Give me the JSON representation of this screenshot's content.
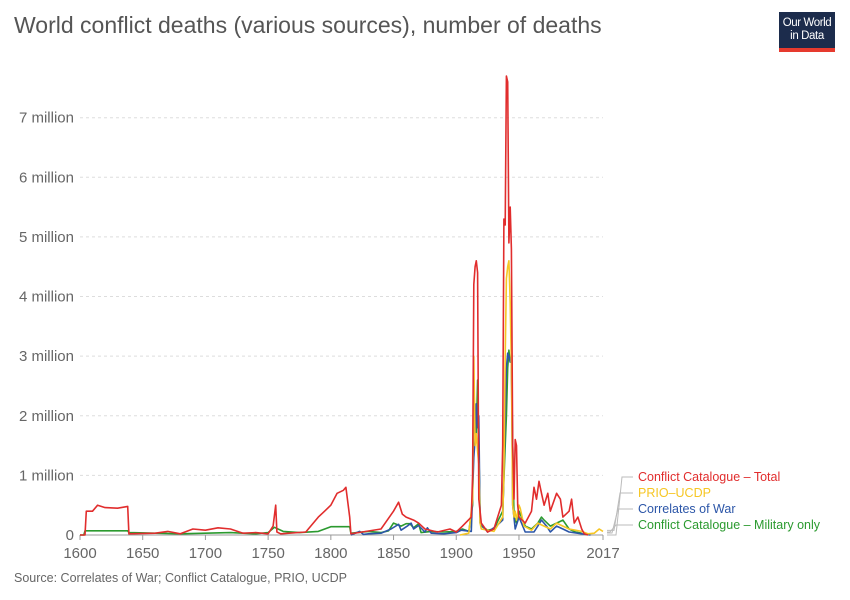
{
  "title": "World conflict deaths (various sources), number of deaths",
  "logo": {
    "line1": "Our World",
    "line2": "in Data"
  },
  "source": "Source: Correlates of War; Conflict Catalogue, PRIO, UCDP",
  "colors": {
    "conflict_catalogue_total": "#e12d2d",
    "prio_ucdp": "#f6c624",
    "correlates_of_war": "#2c56a8",
    "conflict_catalogue_military": "#2b9a2f",
    "grid": "#dddddd",
    "axis": "#999999"
  },
  "chart_data": {
    "type": "line",
    "title": "World conflict deaths (various sources), number of deaths",
    "xlabel": "",
    "ylabel": "",
    "xlim": [
      1600,
      2017
    ],
    "ylim": [
      0,
      7800000
    ],
    "grid": "horizontal dashed",
    "legend_position": "right",
    "x_ticks": [
      {
        "value": 1600,
        "label": "1600"
      },
      {
        "value": 1650,
        "label": "1650"
      },
      {
        "value": 1700,
        "label": "1700"
      },
      {
        "value": 1750,
        "label": "1750"
      },
      {
        "value": 1800,
        "label": "1800"
      },
      {
        "value": 1850,
        "label": "1850"
      },
      {
        "value": 1900,
        "label": "1900"
      },
      {
        "value": 1950,
        "label": "1950"
      },
      {
        "value": 2017,
        "label": "2017"
      }
    ],
    "y_ticks": [
      {
        "value": 0,
        "label": "0"
      },
      {
        "value": 1000000,
        "label": "1 million"
      },
      {
        "value": 2000000,
        "label": "2 million"
      },
      {
        "value": 3000000,
        "label": "3 million"
      },
      {
        "value": 4000000,
        "label": "4 million"
      },
      {
        "value": 5000000,
        "label": "5 million"
      },
      {
        "value": 6000000,
        "label": "6 million"
      },
      {
        "value": 7000000,
        "label": "7 million"
      }
    ],
    "series": [
      {
        "name": "Conflict Catalogue – Military only",
        "color": "#2b9a2f",
        "points": [
          [
            1600,
            0
          ],
          [
            1603,
            0
          ],
          [
            1604,
            70000
          ],
          [
            1630,
            70000
          ],
          [
            1638,
            70000
          ],
          [
            1639,
            40000
          ],
          [
            1660,
            30000
          ],
          [
            1680,
            20000
          ],
          [
            1700,
            30000
          ],
          [
            1720,
            40000
          ],
          [
            1740,
            20000
          ],
          [
            1750,
            40000
          ],
          [
            1755,
            130000
          ],
          [
            1762,
            60000
          ],
          [
            1775,
            40000
          ],
          [
            1790,
            60000
          ],
          [
            1800,
            140000
          ],
          [
            1815,
            140000
          ],
          [
            1816,
            30000
          ],
          [
            1830,
            60000
          ],
          [
            1840,
            40000
          ],
          [
            1846,
            70000
          ],
          [
            1850,
            200000
          ],
          [
            1856,
            150000
          ],
          [
            1860,
            190000
          ],
          [
            1863,
            190000
          ],
          [
            1866,
            120000
          ],
          [
            1870,
            190000
          ],
          [
            1872,
            40000
          ],
          [
            1880,
            60000
          ],
          [
            1890,
            50000
          ],
          [
            1900,
            60000
          ],
          [
            1905,
            100000
          ],
          [
            1910,
            60000
          ],
          [
            1913,
            500000
          ],
          [
            1914,
            2600000
          ],
          [
            1915,
            1700000
          ],
          [
            1916,
            1700000
          ],
          [
            1917,
            2600000
          ],
          [
            1918,
            1500000
          ],
          [
            1919,
            300000
          ],
          [
            1920,
            150000
          ],
          [
            1925,
            80000
          ],
          [
            1930,
            100000
          ],
          [
            1937,
            400000
          ],
          [
            1939,
            1500000
          ],
          [
            1940,
            2000000
          ],
          [
            1941,
            2800000
          ],
          [
            1942,
            3100000
          ],
          [
            1943,
            2900000
          ],
          [
            1944,
            2900000
          ],
          [
            1945,
            1500000
          ],
          [
            1946,
            300000
          ],
          [
            1948,
            200000
          ],
          [
            1950,
            400000
          ],
          [
            1952,
            300000
          ],
          [
            1955,
            150000
          ],
          [
            1960,
            100000
          ],
          [
            1965,
            200000
          ],
          [
            1968,
            300000
          ],
          [
            1970,
            250000
          ],
          [
            1975,
            150000
          ],
          [
            1980,
            200000
          ],
          [
            1985,
            250000
          ],
          [
            1990,
            100000
          ],
          [
            1995,
            50000
          ],
          [
            2000,
            30000
          ]
        ]
      },
      {
        "name": "Correlates of War",
        "color": "#2c56a8",
        "points": [
          [
            1816,
            0
          ],
          [
            1823,
            60000
          ],
          [
            1826,
            10000
          ],
          [
            1830,
            20000
          ],
          [
            1840,
            30000
          ],
          [
            1848,
            100000
          ],
          [
            1854,
            180000
          ],
          [
            1856,
            80000
          ],
          [
            1861,
            150000
          ],
          [
            1864,
            200000
          ],
          [
            1866,
            100000
          ],
          [
            1870,
            160000
          ],
          [
            1875,
            50000
          ],
          [
            1877,
            120000
          ],
          [
            1880,
            30000
          ],
          [
            1890,
            20000
          ],
          [
            1900,
            40000
          ],
          [
            1904,
            80000
          ],
          [
            1912,
            60000
          ],
          [
            1914,
            1300000
          ],
          [
            1915,
            1600000
          ],
          [
            1916,
            2200000
          ],
          [
            1917,
            1800000
          ],
          [
            1918,
            2000000
          ],
          [
            1919,
            200000
          ],
          [
            1925,
            50000
          ],
          [
            1932,
            150000
          ],
          [
            1937,
            250000
          ],
          [
            1939,
            2000000
          ],
          [
            1940,
            2800000
          ],
          [
            1941,
            3050000
          ],
          [
            1942,
            3000000
          ],
          [
            1943,
            2900000
          ],
          [
            1944,
            3000000
          ],
          [
            1945,
            500000
          ],
          [
            1947,
            100000
          ],
          [
            1950,
            300000
          ],
          [
            1952,
            200000
          ],
          [
            1955,
            50000
          ],
          [
            1962,
            50000
          ],
          [
            1965,
            150000
          ],
          [
            1968,
            250000
          ],
          [
            1972,
            150000
          ],
          [
            1975,
            50000
          ],
          [
            1980,
            150000
          ],
          [
            1985,
            100000
          ],
          [
            1990,
            50000
          ],
          [
            2000,
            20000
          ],
          [
            2007,
            0
          ]
        ]
      },
      {
        "name": "PRIO–UCDP",
        "color": "#f6c624",
        "points": [
          [
            1903,
            0
          ],
          [
            1910,
            30000
          ],
          [
            1913,
            600000
          ],
          [
            1914,
            3000000
          ],
          [
            1915,
            1500000
          ],
          [
            1916,
            1700000
          ],
          [
            1917,
            1400000
          ],
          [
            1918,
            1200000
          ],
          [
            1919,
            200000
          ],
          [
            1920,
            100000
          ],
          [
            1930,
            60000
          ],
          [
            1937,
            300000
          ],
          [
            1938,
            1000000
          ],
          [
            1939,
            3000000
          ],
          [
            1940,
            4300000
          ],
          [
            1941,
            4500000
          ],
          [
            1942,
            4600000
          ],
          [
            1943,
            3900000
          ],
          [
            1944,
            2800000
          ],
          [
            1945,
            500000
          ],
          [
            1946,
            300000
          ],
          [
            1947,
            400000
          ],
          [
            1948,
            250000
          ],
          [
            1950,
            500000
          ],
          [
            1951,
            450000
          ],
          [
            1952,
            350000
          ],
          [
            1954,
            150000
          ],
          [
            1960,
            80000
          ],
          [
            1965,
            200000
          ],
          [
            1970,
            150000
          ],
          [
            1975,
            100000
          ],
          [
            1980,
            200000
          ],
          [
            1985,
            150000
          ],
          [
            1990,
            100000
          ],
          [
            1995,
            80000
          ],
          [
            2000,
            60000
          ],
          [
            2005,
            20000
          ],
          [
            2010,
            30000
          ],
          [
            2014,
            100000
          ],
          [
            2017,
            60000
          ]
        ]
      },
      {
        "name": "Conflict Catalogue – Total",
        "color": "#e12d2d",
        "points": [
          [
            1600,
            0
          ],
          [
            1604,
            0
          ],
          [
            1605,
            400000
          ],
          [
            1610,
            400000
          ],
          [
            1614,
            500000
          ],
          [
            1620,
            460000
          ],
          [
            1630,
            450000
          ],
          [
            1638,
            480000
          ],
          [
            1639,
            20000
          ],
          [
            1660,
            30000
          ],
          [
            1670,
            60000
          ],
          [
            1680,
            20000
          ],
          [
            1690,
            100000
          ],
          [
            1700,
            80000
          ],
          [
            1710,
            120000
          ],
          [
            1720,
            100000
          ],
          [
            1730,
            30000
          ],
          [
            1740,
            40000
          ],
          [
            1750,
            20000
          ],
          [
            1754,
            150000
          ],
          [
            1756,
            500000
          ],
          [
            1757,
            50000
          ],
          [
            1760,
            20000
          ],
          [
            1780,
            50000
          ],
          [
            1790,
            300000
          ],
          [
            1795,
            400000
          ],
          [
            1800,
            500000
          ],
          [
            1805,
            700000
          ],
          [
            1810,
            750000
          ],
          [
            1812,
            800000
          ],
          [
            1815,
            300000
          ],
          [
            1816,
            20000
          ],
          [
            1825,
            50000
          ],
          [
            1840,
            100000
          ],
          [
            1850,
            400000
          ],
          [
            1854,
            550000
          ],
          [
            1857,
            350000
          ],
          [
            1860,
            300000
          ],
          [
            1866,
            250000
          ],
          [
            1870,
            200000
          ],
          [
            1875,
            100000
          ],
          [
            1885,
            50000
          ],
          [
            1895,
            100000
          ],
          [
            1900,
            50000
          ],
          [
            1905,
            150000
          ],
          [
            1912,
            300000
          ],
          [
            1913,
            1000000
          ],
          [
            1914,
            4200000
          ],
          [
            1915,
            4500000
          ],
          [
            1916,
            4600000
          ],
          [
            1917,
            4400000
          ],
          [
            1918,
            600000
          ],
          [
            1919,
            400000
          ],
          [
            1920,
            200000
          ],
          [
            1925,
            50000
          ],
          [
            1930,
            100000
          ],
          [
            1936,
            500000
          ],
          [
            1937,
            1500000
          ],
          [
            1938,
            5300000
          ],
          [
            1939,
            5200000
          ],
          [
            1940,
            7700000
          ],
          [
            1941,
            7600000
          ],
          [
            1942,
            4900000
          ],
          [
            1943,
            5500000
          ],
          [
            1944,
            4800000
          ],
          [
            1945,
            1500000
          ],
          [
            1946,
            600000
          ],
          [
            1947,
            1600000
          ],
          [
            1948,
            1500000
          ],
          [
            1949,
            500000
          ],
          [
            1950,
            300000
          ],
          [
            1955,
            200000
          ],
          [
            1960,
            400000
          ],
          [
            1962,
            800000
          ],
          [
            1964,
            600000
          ],
          [
            1966,
            900000
          ],
          [
            1968,
            700000
          ],
          [
            1970,
            500000
          ],
          [
            1973,
            700000
          ],
          [
            1975,
            400000
          ],
          [
            1980,
            700000
          ],
          [
            1983,
            600000
          ],
          [
            1985,
            300000
          ],
          [
            1990,
            400000
          ],
          [
            1992,
            600000
          ],
          [
            1994,
            200000
          ],
          [
            1997,
            300000
          ],
          [
            2000,
            100000
          ],
          [
            2002,
            20000
          ],
          [
            2005,
            0
          ]
        ]
      }
    ],
    "legend": [
      {
        "label": "Conflict Catalogue – Total",
        "color": "#e12d2d"
      },
      {
        "label": "PRIO–UCDP",
        "color": "#f6c624"
      },
      {
        "label": "Correlates of War",
        "color": "#2c56a8"
      },
      {
        "label": "Conflict Catalogue – Military only",
        "color": "#2b9a2f"
      }
    ]
  }
}
